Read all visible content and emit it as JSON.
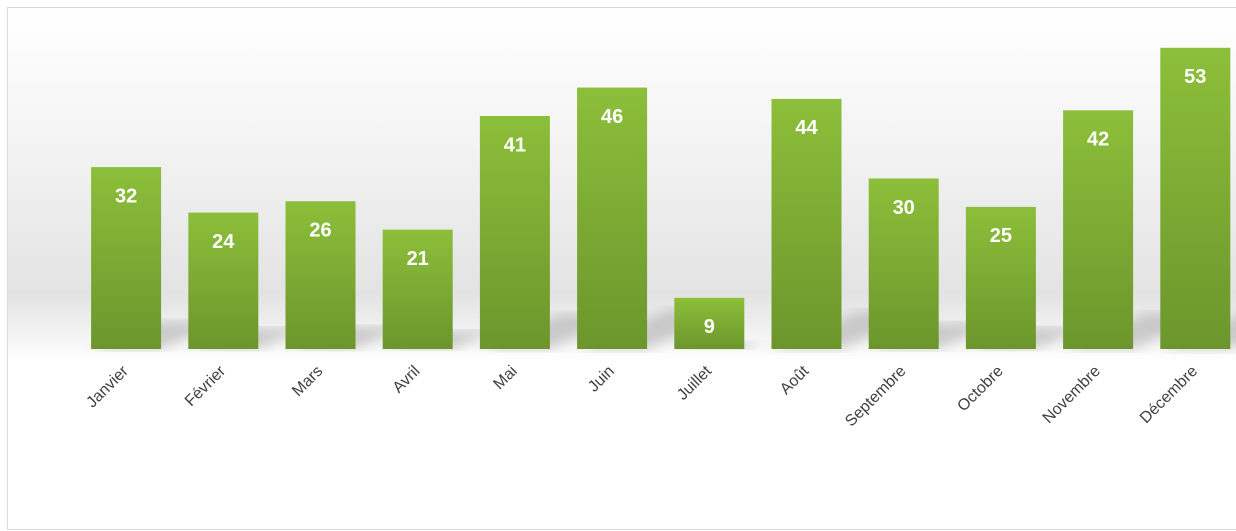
{
  "chart_data": {
    "type": "bar",
    "categories": [
      "Janvier",
      "Février",
      "Mars",
      "Avril",
      "Mai",
      "Juin",
      "Juillet",
      "Août",
      "Septembre",
      "Octobre",
      "Novembre",
      "Décembre"
    ],
    "values": [
      32,
      24,
      26,
      21,
      41,
      46,
      9,
      44,
      30,
      25,
      42,
      53
    ],
    "color": "#7fb034",
    "ylim": [
      0,
      60
    ]
  }
}
